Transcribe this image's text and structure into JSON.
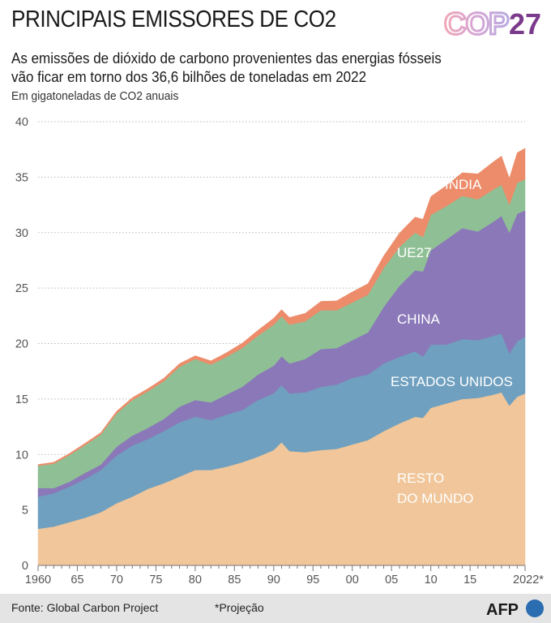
{
  "header": {
    "title": "PRINCIPAIS EMISSORES DE CO2",
    "logo_text": "COP",
    "logo_number": "27"
  },
  "subtitle": {
    "line1": "As emissões de dióxido de carbono provenientes das energias fósseis",
    "line2": "vão ficar em torno dos 36,6 bilhões de toneladas em 2022"
  },
  "unit_label": "Em gigatoneladas de CO2 anuais",
  "footer": {
    "source": "Fonte: Global Carbon Project",
    "note": "*Projeção",
    "brand": "AFP"
  },
  "chart_data": {
    "type": "area",
    "stacked": true,
    "x_start": 1960,
    "x_end": 2022,
    "ylim": [
      0,
      40
    ],
    "y_ticks": [
      0,
      5,
      10,
      15,
      20,
      25,
      30,
      35,
      40
    ],
    "x_ticks": [
      {
        "value": 1960,
        "label": "1960"
      },
      {
        "value": 1965,
        "label": "65"
      },
      {
        "value": 1970,
        "label": "70"
      },
      {
        "value": 1975,
        "label": "75"
      },
      {
        "value": 1980,
        "label": "80"
      },
      {
        "value": 1985,
        "label": "85"
      },
      {
        "value": 1990,
        "label": "90"
      },
      {
        "value": 1995,
        "label": "95"
      },
      {
        "value": 2000,
        "label": "00"
      },
      {
        "value": 2005,
        "label": "05"
      },
      {
        "value": 2010,
        "label": "10"
      },
      {
        "value": 2015,
        "label": "15"
      },
      {
        "value": 2022,
        "label": "2022*"
      }
    ],
    "grid": "horizontal-dotted",
    "series": [
      {
        "name": "RESTO DO MUNDO",
        "label_lines": [
          "RESTO",
          "DO MUNDO"
        ],
        "color": "#f0c69a",
        "keys": [
          [
            1960,
            3.3
          ],
          [
            1962,
            3.5
          ],
          [
            1964,
            3.9
          ],
          [
            1966,
            4.3
          ],
          [
            1968,
            4.8
          ],
          [
            1970,
            5.6
          ],
          [
            1972,
            6.2
          ],
          [
            1974,
            6.9
          ],
          [
            1976,
            7.4
          ],
          [
            1978,
            8.0
          ],
          [
            1980,
            8.6
          ],
          [
            1982,
            8.6
          ],
          [
            1984,
            8.9
          ],
          [
            1986,
            9.3
          ],
          [
            1988,
            9.8
          ],
          [
            1990,
            10.4
          ],
          [
            1991,
            11.1
          ],
          [
            1992,
            10.3
          ],
          [
            1994,
            10.2
          ],
          [
            1996,
            10.4
          ],
          [
            1998,
            10.5
          ],
          [
            2000,
            10.9
          ],
          [
            2002,
            11.3
          ],
          [
            2004,
            12.1
          ],
          [
            2006,
            12.8
          ],
          [
            2008,
            13.4
          ],
          [
            2009,
            13.3
          ],
          [
            2010,
            14.2
          ],
          [
            2012,
            14.6
          ],
          [
            2014,
            15.0
          ],
          [
            2016,
            15.1
          ],
          [
            2018,
            15.4
          ],
          [
            2019,
            15.6
          ],
          [
            2020,
            14.4
          ],
          [
            2021,
            15.2
          ],
          [
            2022,
            15.5
          ]
        ]
      },
      {
        "name": "ESTADOS UNIDOS",
        "label_lines": [
          "ESTADOS UNIDOS"
        ],
        "color": "#6fa0bf",
        "keys": [
          [
            1960,
            2.9
          ],
          [
            1962,
            3.0
          ],
          [
            1964,
            3.2
          ],
          [
            1966,
            3.5
          ],
          [
            1968,
            3.8
          ],
          [
            1970,
            4.3
          ],
          [
            1972,
            4.6
          ],
          [
            1974,
            4.5
          ],
          [
            1976,
            4.7
          ],
          [
            1978,
            4.9
          ],
          [
            1980,
            4.8
          ],
          [
            1982,
            4.5
          ],
          [
            1984,
            4.7
          ],
          [
            1986,
            4.7
          ],
          [
            1988,
            5.1
          ],
          [
            1990,
            5.1
          ],
          [
            1992,
            5.2
          ],
          [
            1994,
            5.4
          ],
          [
            1996,
            5.7
          ],
          [
            1998,
            5.8
          ],
          [
            2000,
            6.0
          ],
          [
            2002,
            5.9
          ],
          [
            2004,
            6.1
          ],
          [
            2006,
            6.0
          ],
          [
            2008,
            5.9
          ],
          [
            2009,
            5.5
          ],
          [
            2010,
            5.7
          ],
          [
            2012,
            5.3
          ],
          [
            2014,
            5.4
          ],
          [
            2016,
            5.2
          ],
          [
            2018,
            5.3
          ],
          [
            2019,
            5.3
          ],
          [
            2020,
            4.7
          ],
          [
            2021,
            5.0
          ],
          [
            2022,
            5.1
          ]
        ]
      },
      {
        "name": "CHINA",
        "label_lines": [
          "CHINA"
        ],
        "color": "#8a78b8",
        "keys": [
          [
            1960,
            0.78
          ],
          [
            1962,
            0.47
          ],
          [
            1964,
            0.45
          ],
          [
            1966,
            0.55
          ],
          [
            1968,
            0.5
          ],
          [
            1970,
            0.8
          ],
          [
            1972,
            0.9
          ],
          [
            1974,
            1.0
          ],
          [
            1976,
            1.1
          ],
          [
            1978,
            1.4
          ],
          [
            1980,
            1.5
          ],
          [
            1982,
            1.6
          ],
          [
            1984,
            1.8
          ],
          [
            1986,
            2.1
          ],
          [
            1988,
            2.3
          ],
          [
            1990,
            2.5
          ],
          [
            1992,
            2.7
          ],
          [
            1994,
            3.0
          ],
          [
            1996,
            3.4
          ],
          [
            1998,
            3.3
          ],
          [
            2000,
            3.4
          ],
          [
            2002,
            3.8
          ],
          [
            2004,
            5.1
          ],
          [
            2006,
            6.4
          ],
          [
            2008,
            7.3
          ],
          [
            2009,
            7.7
          ],
          [
            2010,
            8.5
          ],
          [
            2012,
            9.5
          ],
          [
            2014,
            10.0
          ],
          [
            2016,
            9.8
          ],
          [
            2018,
            10.3
          ],
          [
            2019,
            10.6
          ],
          [
            2020,
            10.9
          ],
          [
            2021,
            11.5
          ],
          [
            2022,
            11.4
          ]
        ]
      },
      {
        "name": "UE27",
        "label_lines": [
          "UE27"
        ],
        "color": "#8fc095",
        "keys": [
          [
            1960,
            2.0
          ],
          [
            1962,
            2.2
          ],
          [
            1964,
            2.4
          ],
          [
            1966,
            2.5
          ],
          [
            1968,
            2.7
          ],
          [
            1970,
            3.0
          ],
          [
            1972,
            3.2
          ],
          [
            1974,
            3.3
          ],
          [
            1976,
            3.4
          ],
          [
            1978,
            3.6
          ],
          [
            1980,
            3.7
          ],
          [
            1982,
            3.4
          ],
          [
            1984,
            3.4
          ],
          [
            1986,
            3.5
          ],
          [
            1988,
            3.5
          ],
          [
            1990,
            3.7
          ],
          [
            1992,
            3.5
          ],
          [
            1994,
            3.4
          ],
          [
            1996,
            3.5
          ],
          [
            1998,
            3.4
          ],
          [
            2000,
            3.4
          ],
          [
            2002,
            3.4
          ],
          [
            2004,
            3.5
          ],
          [
            2006,
            3.5
          ],
          [
            2008,
            3.4
          ],
          [
            2009,
            3.1
          ],
          [
            2010,
            3.2
          ],
          [
            2012,
            3.0
          ],
          [
            2014,
            2.9
          ],
          [
            2016,
            2.9
          ],
          [
            2018,
            2.9
          ],
          [
            2019,
            2.8
          ],
          [
            2020,
            2.5
          ],
          [
            2021,
            2.8
          ],
          [
            2022,
            2.8
          ]
        ]
      },
      {
        "name": "INDIA",
        "label_lines": [
          "INDIA"
        ],
        "color": "#ec8c6a",
        "keys": [
          [
            1960,
            0.12
          ],
          [
            1962,
            0.13
          ],
          [
            1964,
            0.15
          ],
          [
            1966,
            0.17
          ],
          [
            1968,
            0.18
          ],
          [
            1970,
            0.2
          ],
          [
            1972,
            0.22
          ],
          [
            1974,
            0.24
          ],
          [
            1976,
            0.27
          ],
          [
            1978,
            0.29
          ],
          [
            1980,
            0.3
          ],
          [
            1982,
            0.34
          ],
          [
            1984,
            0.38
          ],
          [
            1986,
            0.44
          ],
          [
            1988,
            0.5
          ],
          [
            1990,
            0.58
          ],
          [
            1992,
            0.65
          ],
          [
            1994,
            0.72
          ],
          [
            1996,
            0.8
          ],
          [
            1998,
            0.85
          ],
          [
            2000,
            0.95
          ],
          [
            2002,
            1.0
          ],
          [
            2004,
            1.1
          ],
          [
            2006,
            1.25
          ],
          [
            2008,
            1.4
          ],
          [
            2009,
            1.6
          ],
          [
            2010,
            1.65
          ],
          [
            2012,
            1.85
          ],
          [
            2014,
            2.1
          ],
          [
            2016,
            2.3
          ],
          [
            2018,
            2.5
          ],
          [
            2019,
            2.6
          ],
          [
            2020,
            2.4
          ],
          [
            2021,
            2.7
          ],
          [
            2022,
            2.8
          ]
        ]
      }
    ]
  },
  "colors": {
    "grid": "#b8b8b8",
    "axis_text": "#555555",
    "label_text": "#ffffff",
    "cop_pink": "#e7a6c8",
    "cop_lilac": "#c6a8dc",
    "cop_purple": "#7b3a8c",
    "afp_blue": "#2a6db0"
  }
}
